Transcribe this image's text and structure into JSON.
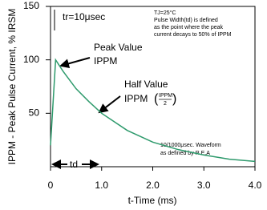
{
  "chart_data": {
    "type": "line",
    "ylabel": "IPPM - Peak Pulse Current, % IRSM",
    "xlabel": "t-Time (ms)",
    "x": [
      0,
      0.1,
      0.25,
      0.5,
      0.75,
      1.0,
      1.5,
      2.0,
      2.5,
      3.0,
      3.5,
      4.0
    ],
    "series": [
      {
        "color": "#2e9a6c",
        "values": [
          20,
          100,
          89,
          73,
          61,
          50,
          34,
          23,
          16,
          11,
          7,
          5
        ]
      }
    ],
    "xlim": [
      0,
      4.0
    ],
    "xticks": [
      0,
      {
        "value": 1,
        "label": "1.0"
      },
      {
        "value": 2,
        "label": "2.0"
      },
      {
        "value": 3,
        "label": "3.0"
      },
      {
        "value": 4,
        "label": "4.0"
      }
    ],
    "ylim": [
      0,
      150
    ],
    "yticks": [
      50,
      100,
      150
    ],
    "annotations": {
      "rise": "tr=10μsec",
      "conditions": [
        "TJ=25°C",
        "Pulse Width(td) is defined",
        "as the point where the peak",
        "current decays to 50% of IPPM"
      ],
      "peak": [
        "Peak Value",
        "IPPM"
      ],
      "half": [
        "Half Value",
        "IPPM",
        "IPPM",
        "2"
      ],
      "waveform": [
        "10/1000μsec. Waveform",
        "as defined by R.E.A"
      ],
      "td": "td"
    }
  }
}
